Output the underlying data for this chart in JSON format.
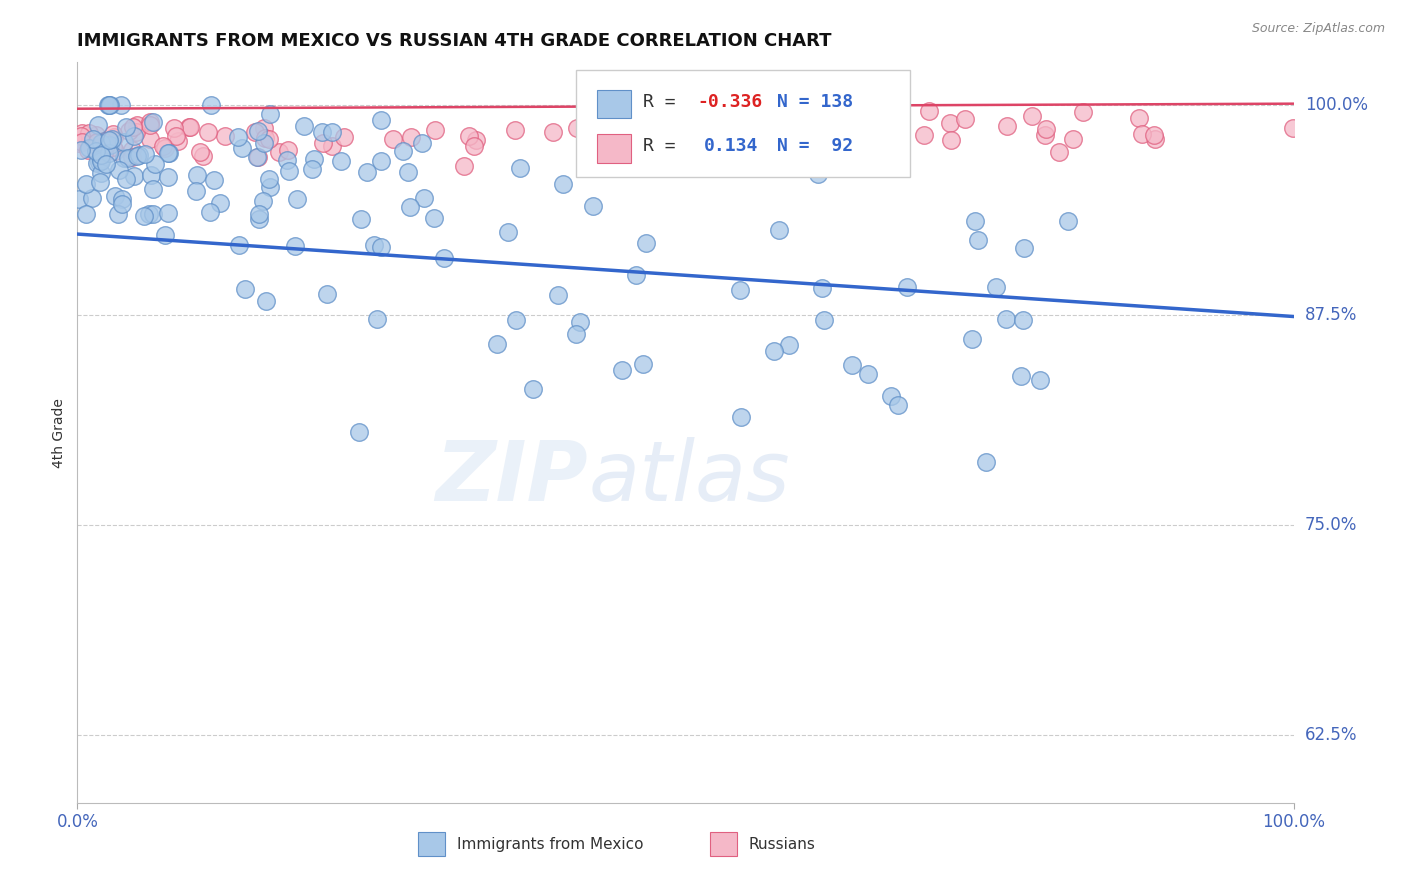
{
  "title": "IMMIGRANTS FROM MEXICO VS RUSSIAN 4TH GRADE CORRELATION CHART",
  "source": "Source: ZipAtlas.com",
  "ylabel": "4th Grade",
  "xlim": [
    0.0,
    1.0
  ],
  "ylim": [
    0.585,
    1.025
  ],
  "yticks": [
    0.625,
    0.75,
    0.875,
    1.0
  ],
  "ytick_labels": [
    "62.5%",
    "75.0%",
    "87.5%",
    "100.0%"
  ],
  "xtick_labels": [
    "0.0%",
    "100.0%"
  ],
  "mexico_color": "#a8c8e8",
  "russia_color": "#f5b8c8",
  "mexico_edge": "#6090c8",
  "russia_edge": "#e06080",
  "trend_mexico_color": "#3366cc",
  "trend_russia_color": "#dd4466",
  "R_mexico": -0.336,
  "N_mexico": 138,
  "R_russia": 0.134,
  "N_russia": 92,
  "title_fontsize": 13,
  "axis_label_fontsize": 10,
  "tick_fontsize": 12,
  "trend_mexico_start_y": 0.923,
  "trend_mexico_end_y": 0.874,
  "trend_russia_start_y": 0.9975,
  "trend_russia_end_y": 1.0005
}
